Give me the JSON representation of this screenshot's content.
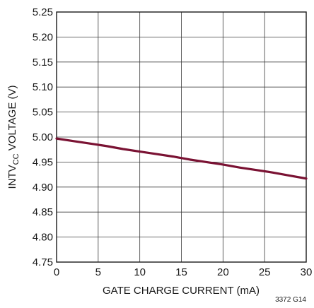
{
  "chart_data": {
    "type": "line",
    "xlabel": "GATE CHARGE CURRENT (mA)",
    "ylabel": {
      "prefix": "INTV",
      "subscript": "CC",
      "suffix": " VOLTAGE (V)"
    },
    "xlim": [
      0,
      30
    ],
    "ylim": [
      4.75,
      5.25
    ],
    "x_ticks": [
      "0",
      "5",
      "10",
      "15",
      "20",
      "25",
      "30"
    ],
    "y_ticks": [
      "4.75",
      "4.80",
      "4.85",
      "4.90",
      "4.95",
      "5.00",
      "5.05",
      "5.10",
      "5.15",
      "5.20",
      "5.25"
    ],
    "grid": true,
    "line_color": "#7a1233",
    "series": [
      {
        "x": [
          0,
          2,
          4,
          6,
          8,
          10,
          12,
          14,
          16,
          18,
          20,
          22,
          24,
          26,
          28,
          30
        ],
        "y": [
          4.997,
          4.992,
          4.987,
          4.982,
          4.976,
          4.971,
          4.966,
          4.961,
          4.955,
          4.95,
          4.945,
          4.939,
          4.934,
          4.929,
          4.923,
          4.917
        ]
      }
    ],
    "figure_id": "3372 G14"
  }
}
